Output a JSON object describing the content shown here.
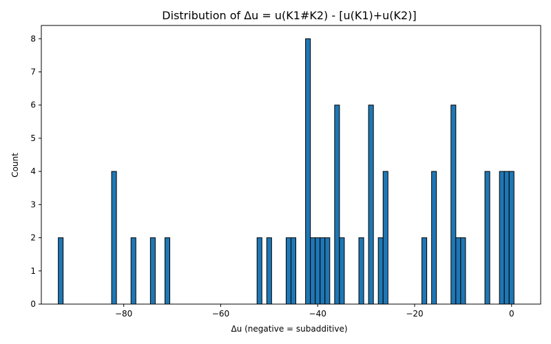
{
  "chart_data": {
    "type": "bar",
    "title": "Distribution of Δu = u(K1#K2) - [u(K1)+u(K2)]",
    "xlabel": "Δu (negative = subadditive)",
    "ylabel": "Count",
    "xlim": [
      -97,
      6
    ],
    "ylim": [
      0,
      8.4
    ],
    "bin_width": 1,
    "x_ticks": [
      -80,
      -60,
      -40,
      -20,
      0
    ],
    "x_tick_labels": [
      "−80",
      "−60",
      "−40",
      "−20",
      "0"
    ],
    "y_ticks": [
      0,
      1,
      2,
      3,
      4,
      5,
      6,
      7,
      8
    ],
    "y_tick_labels": [
      "0",
      "1",
      "2",
      "3",
      "4",
      "5",
      "6",
      "7",
      "8"
    ],
    "bar_color": "#1f77b4",
    "bins": [
      {
        "x": -93,
        "count": 2
      },
      {
        "x": -82,
        "count": 4
      },
      {
        "x": -78,
        "count": 2
      },
      {
        "x": -74,
        "count": 2
      },
      {
        "x": -71,
        "count": 2
      },
      {
        "x": -52,
        "count": 2
      },
      {
        "x": -50,
        "count": 2
      },
      {
        "x": -46,
        "count": 2
      },
      {
        "x": -45,
        "count": 2
      },
      {
        "x": -42,
        "count": 8
      },
      {
        "x": -41,
        "count": 2
      },
      {
        "x": -40,
        "count": 2
      },
      {
        "x": -39,
        "count": 2
      },
      {
        "x": -38,
        "count": 2
      },
      {
        "x": -36,
        "count": 6
      },
      {
        "x": -35,
        "count": 2
      },
      {
        "x": -31,
        "count": 2
      },
      {
        "x": -29,
        "count": 6
      },
      {
        "x": -27,
        "count": 2
      },
      {
        "x": -26,
        "count": 4
      },
      {
        "x": -18,
        "count": 2
      },
      {
        "x": -16,
        "count": 4
      },
      {
        "x": -12,
        "count": 6
      },
      {
        "x": -11,
        "count": 2
      },
      {
        "x": -10,
        "count": 2
      },
      {
        "x": -5,
        "count": 4
      },
      {
        "x": -2,
        "count": 4
      },
      {
        "x": -1,
        "count": 4
      },
      {
        "x": 0,
        "count": 4
      }
    ]
  }
}
